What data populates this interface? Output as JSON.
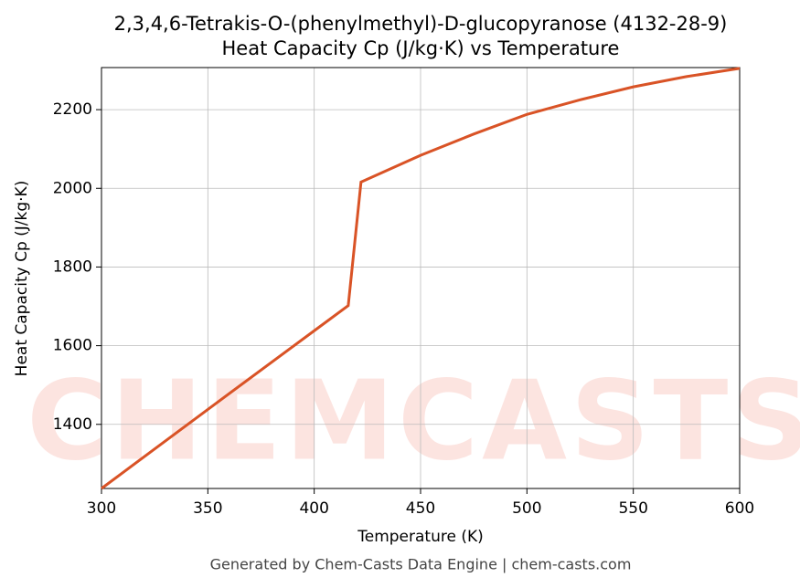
{
  "chart_data": {
    "type": "line",
    "title": "2,3,4,6-Tetrakis-O-(phenylmethyl)-D-glucopyranose (4132-28-9)",
    "subtitle": "Heat Capacity Cp (J/kg·K) vs Temperature",
    "x_label": "Temperature (K)",
    "y_label": "Heat Capacity Cp (J/kg·K)",
    "watermark": "CHEMCASTS",
    "footer": "Generated by Chem-Casts Data Engine | chem-casts.com",
    "x": [
      300,
      350,
      400,
      416,
      422,
      450,
      475,
      500,
      525,
      550,
      575,
      600
    ],
    "series": [
      {
        "name": "Cp",
        "color": "#d95326",
        "values": [
          1237,
          1438,
          1638,
          1702,
          2016,
          2084,
          2138,
          2188,
          2225,
          2258,
          2284,
          2305
        ]
      }
    ],
    "xlim": [
      300,
      600
    ],
    "xticks": [
      300,
      350,
      400,
      450,
      500,
      550,
      600
    ],
    "ylim": [
      1237,
      2307
    ],
    "yticks": [
      1400,
      1600,
      1800,
      2000,
      2200
    ],
    "grid": true
  }
}
